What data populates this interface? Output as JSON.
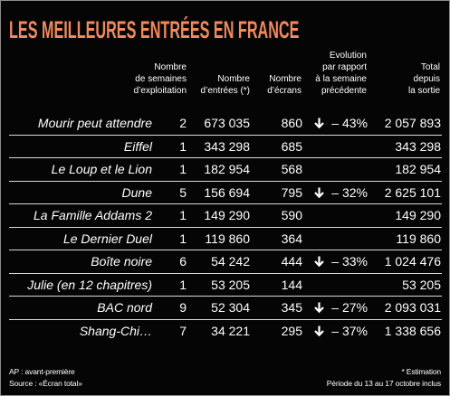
{
  "title": "LES MEILLEURES ENTRÉES EN FRANCE",
  "colors": {
    "background": "#050505",
    "title": "#ee8a5e",
    "text": "#ffffff",
    "rule": "#d8d8d8"
  },
  "icons": {
    "evolution_down": "down-arrow-icon"
  },
  "table": {
    "headers": [
      {
        "column": "weeks",
        "lines": [
          "Nombre",
          "de semaines",
          "d’exploitation"
        ]
      },
      {
        "column": "entrees",
        "lines": [
          "Nombre",
          "d’entrées (*)"
        ]
      },
      {
        "column": "ecrans",
        "lines": [
          "Nombre",
          "d’écrans"
        ]
      },
      {
        "column": "evolution",
        "lines": [
          "Evolution",
          "par rapport",
          "à la semaine",
          "précédente"
        ]
      },
      {
        "column": "total",
        "lines": [
          "Total",
          "depuis",
          "la sortie"
        ]
      }
    ],
    "rows": [
      {
        "title": "Mourir peut attendre",
        "weeks": "2",
        "entrees": "673 035",
        "ecrans": "860",
        "trend": "down",
        "evolution": "– 43%",
        "total": "2 057 893"
      },
      {
        "title": "Eiffel",
        "weeks": "1",
        "entrees": "343 298",
        "ecrans": "685",
        "total": "343 298"
      },
      {
        "title": "Le Loup et le Lion",
        "weeks": "1",
        "entrees": "182 954",
        "ecrans": "568",
        "total": "182 954"
      },
      {
        "title": "Dune",
        "weeks": "5",
        "entrees": "156 694",
        "ecrans": "795",
        "trend": "down",
        "evolution": "– 32%",
        "total": "2 625 101"
      },
      {
        "title": "La Famille Addams 2",
        "weeks": "1",
        "entrees": "149 290",
        "ecrans": "590",
        "total": "149 290"
      },
      {
        "title": "Le Dernier Duel",
        "weeks": "1",
        "entrees": "119 860",
        "ecrans": "364",
        "total": "119 860"
      },
      {
        "title": "Boîte noire",
        "weeks": "6",
        "entrees": "54 242",
        "ecrans": "444",
        "trend": "down",
        "evolution": "– 33%",
        "total": "1 024 476"
      },
      {
        "title": "Julie (en 12 chapitres)",
        "weeks": "1",
        "entrees": "53 205",
        "ecrans": "144",
        "total": "53 205"
      },
      {
        "title": "BAC nord",
        "weeks": "9",
        "entrees": "52 304",
        "ecrans": "345",
        "trend": "down",
        "evolution": "– 27%",
        "total": "2 093 031"
      },
      {
        "title": "Shang-Chi…",
        "weeks": "7",
        "entrees": "34 221",
        "ecrans": "295",
        "trend": "down",
        "evolution": "– 37%",
        "total": "1 338 656"
      }
    ]
  },
  "footer": {
    "left": [
      "AP : avant-première",
      "Source : «Écran total»"
    ],
    "right": [
      "* Estimation",
      "Période du 13 au 17 octobre inclus"
    ]
  }
}
